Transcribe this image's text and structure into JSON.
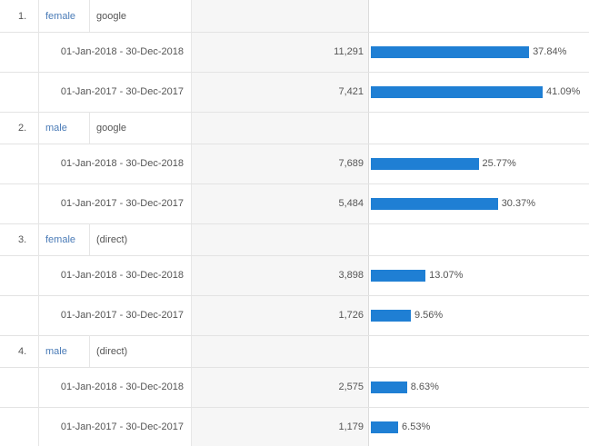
{
  "table": {
    "groups": [
      {
        "rank": "1.",
        "dim1": "female",
        "dim2": "google",
        "rows": [
          {
            "date": "01-Jan-2018 - 30-Dec-2018",
            "value": 11291,
            "value_label": "11,291",
            "percent": 37.84,
            "percent_label": "37.84%"
          },
          {
            "date": "01-Jan-2017 - 30-Dec-2017",
            "value": 7421,
            "value_label": "7,421",
            "percent": 41.09,
            "percent_label": "41.09%"
          }
        ]
      },
      {
        "rank": "2.",
        "dim1": "male",
        "dim2": "google",
        "rows": [
          {
            "date": "01-Jan-2018 - 30-Dec-2018",
            "value": 7689,
            "value_label": "7,689",
            "percent": 25.77,
            "percent_label": "25.77%"
          },
          {
            "date": "01-Jan-2017 - 30-Dec-2017",
            "value": 5484,
            "value_label": "5,484",
            "percent": 30.37,
            "percent_label": "30.37%"
          }
        ]
      },
      {
        "rank": "3.",
        "dim1": "female",
        "dim2": "(direct)",
        "rows": [
          {
            "date": "01-Jan-2018 - 30-Dec-2018",
            "value": 3898,
            "value_label": "3,898",
            "percent": 13.07,
            "percent_label": "13.07%"
          },
          {
            "date": "01-Jan-2017 - 30-Dec-2017",
            "value": 1726,
            "value_label": "1,726",
            "percent": 9.56,
            "percent_label": "9.56%"
          }
        ]
      },
      {
        "rank": "4.",
        "dim1": "male",
        "dim2": "(direct)",
        "rows": [
          {
            "date": "01-Jan-2018 - 30-Dec-2018",
            "value": 2575,
            "value_label": "2,575",
            "percent": 8.63,
            "percent_label": "8.63%"
          },
          {
            "date": "01-Jan-2017 - 30-Dec-2017",
            "value": 1179,
            "value_label": "1,179",
            "percent": 6.53,
            "percent_label": "6.53%"
          }
        ]
      }
    ]
  }
}
